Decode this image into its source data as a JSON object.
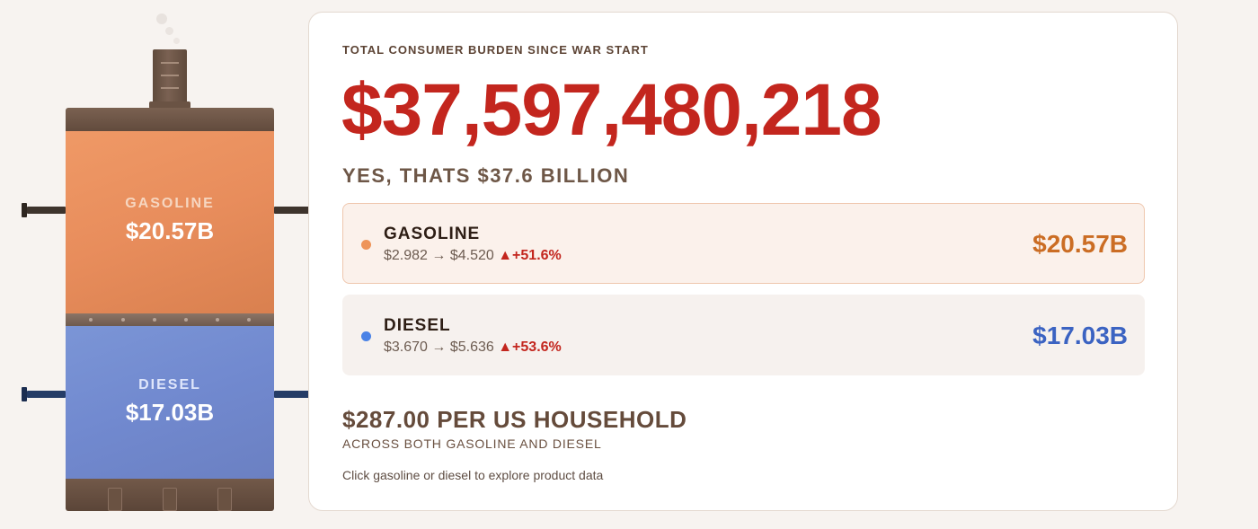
{
  "tank": {
    "gasoline": {
      "label": "GASOLINE",
      "value": "$20.57B"
    },
    "diesel": {
      "label": "DIESEL",
      "value": "$17.03B"
    }
  },
  "summary": {
    "eyebrow": "TOTAL CONSUMER BURDEN SINCE WAR START",
    "total": "$37,597,480,218",
    "total_plain": "YES, THATS $37.6 BILLION"
  },
  "fuels": [
    {
      "name": "GASOLINE",
      "prices": "$2.982 → $4.520",
      "change": "▲+51.6%",
      "total": "$20.57B",
      "color": "#ee9459"
    },
    {
      "name": "DIESEL",
      "prices": "$3.670 → $5.636",
      "change": "▲+53.6%",
      "total": "$17.03B",
      "color": "#4a82e6"
    }
  ],
  "household": {
    "headline": "$287.00 PER US HOUSEHOLD",
    "subline": "ACROSS BOTH GASOLINE AND DIESEL"
  },
  "hint": "Click gasoline or diesel to explore product data",
  "colors": {
    "accent_red": "#c3261e",
    "gasoline": "#ee9459",
    "diesel": "#4a82e6"
  }
}
